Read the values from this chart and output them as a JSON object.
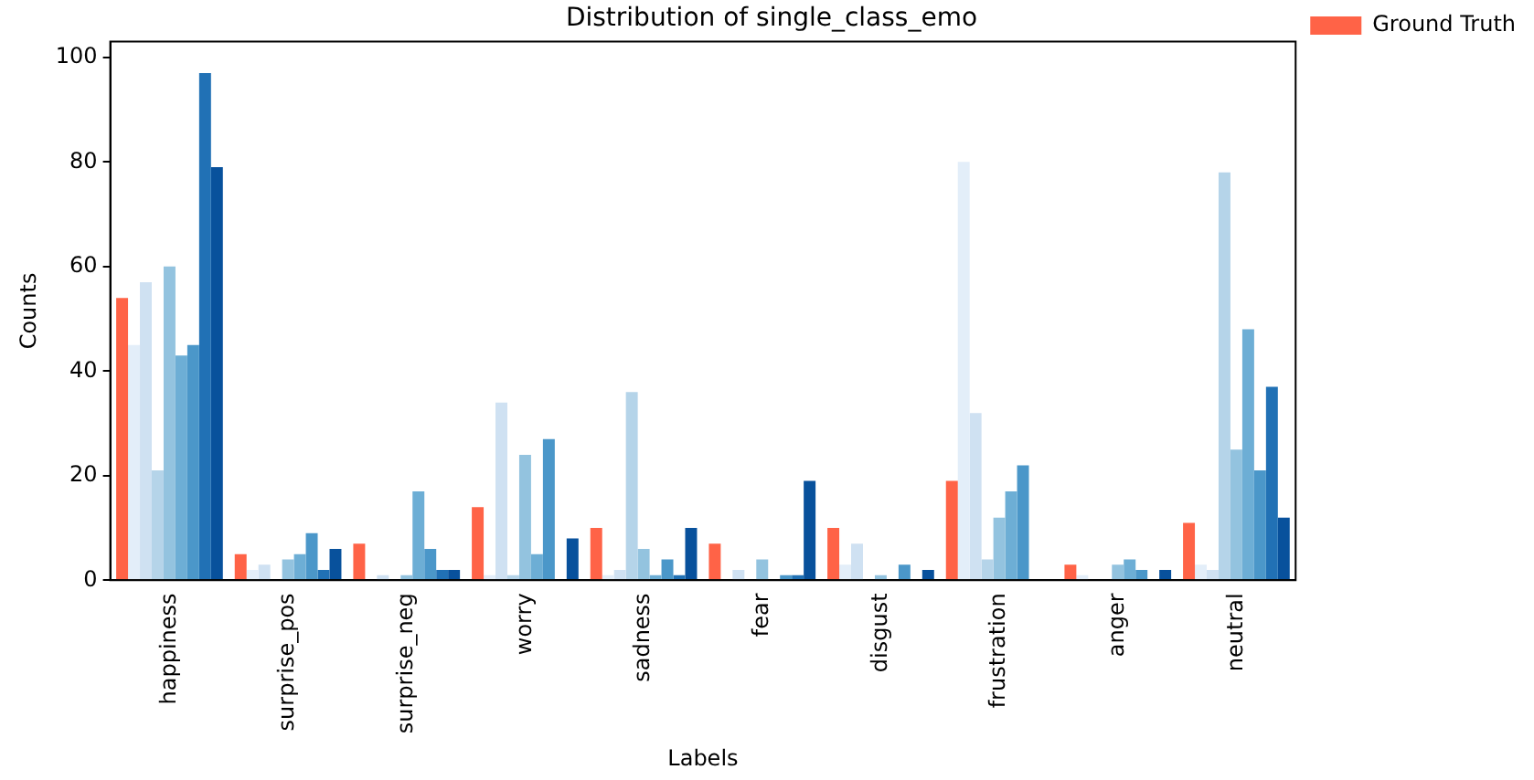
{
  "chart_data": {
    "type": "bar",
    "title": "Distribution of single_class_emo",
    "xlabel": "Labels",
    "ylabel": "Counts",
    "categories": [
      "happiness",
      "surprise_pos",
      "surprise_neg",
      "worry",
      "sadness",
      "fear",
      "disgust",
      "frustration",
      "anger",
      "neutral"
    ],
    "series": [
      {
        "name": "Ground Truth",
        "color": "#ff6347",
        "values": [
          54,
          5,
          7,
          14,
          10,
          7,
          10,
          19,
          3,
          11
        ]
      },
      {
        "color": "#e3eef9",
        "values": [
          45,
          2,
          0,
          1,
          1,
          0,
          3,
          80,
          1,
          3
        ]
      },
      {
        "color": "#cfe1f2",
        "values": [
          57,
          3,
          1,
          34,
          2,
          2,
          7,
          32,
          0,
          2
        ]
      },
      {
        "color": "#b5d4e9",
        "values": [
          21,
          0,
          0,
          1,
          36,
          0,
          0,
          4,
          0,
          78
        ]
      },
      {
        "color": "#93c3df",
        "values": [
          60,
          4,
          1,
          24,
          6,
          4,
          1,
          12,
          3,
          25
        ]
      },
      {
        "color": "#6daed5",
        "values": [
          43,
          5,
          17,
          5,
          1,
          0,
          0,
          17,
          4,
          48
        ]
      },
      {
        "color": "#4b97c9",
        "values": [
          45,
          9,
          6,
          27,
          4,
          1,
          3,
          22,
          2,
          21
        ]
      },
      {
        "color": "#2171b5",
        "values": [
          97,
          2,
          2,
          0,
          1,
          1,
          0,
          0,
          0,
          37
        ]
      },
      {
        "color": "#08519c",
        "values": [
          79,
          6,
          2,
          8,
          10,
          19,
          2,
          0,
          2,
          12
        ]
      }
    ],
    "ylim": [
      0,
      103
    ],
    "yticks": [
      0,
      20,
      40,
      60,
      80,
      100
    ],
    "grid": false,
    "legend": "top right"
  }
}
